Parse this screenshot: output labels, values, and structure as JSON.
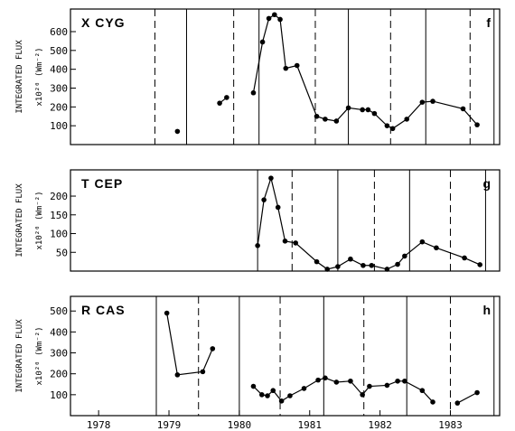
{
  "chart_data": [
    {
      "type": "line",
      "star": "X CYG",
      "panel_label": "f",
      "ylabel_line1": "INTEGRATED FLUX",
      "ylabel_line2": "x10²⁰ (Wm⁻²)",
      "yticks": [
        100,
        200,
        300,
        400,
        500,
        600
      ],
      "ylim": [
        0,
        720
      ],
      "xlim": [
        1977.6,
        1983.7
      ],
      "solid_lines": [
        1979.25,
        1980.28,
        1981.55,
        1982.65,
        1983.62
      ],
      "dashed_lines": [
        1978.8,
        1979.92,
        1981.08,
        1982.15,
        1983.28
      ],
      "segments": [
        {
          "x": [
            1979.12
          ],
          "y": [
            70
          ]
        },
        {
          "x": [
            1979.72,
            1979.82
          ],
          "y": [
            220,
            250
          ]
        },
        {
          "x": [
            1980.2,
            1980.33,
            1980.42,
            1980.5,
            1980.58,
            1980.66,
            1980.82,
            1981.1,
            1981.22,
            1981.38,
            1981.55,
            1981.75,
            1981.83,
            1981.92,
            1982.1,
            1982.18,
            1982.38,
            1982.6,
            1982.75,
            1983.18,
            1983.38
          ],
          "y": [
            275,
            545,
            670,
            690,
            665,
            405,
            420,
            150,
            135,
            125,
            195,
            185,
            185,
            165,
            100,
            85,
            135,
            225,
            230,
            190,
            105
          ]
        }
      ]
    },
    {
      "type": "line",
      "star": "T CEP",
      "panel_label": "g",
      "ylabel_line1": "INTEGRATED FLUX",
      "ylabel_line2": "x10²⁰ (Wm⁻²)",
      "yticks": [
        50,
        100,
        150,
        200
      ],
      "ylim": [
        0,
        270
      ],
      "xlim": [
        1977.6,
        1983.7
      ],
      "solid_lines": [
        1980.26,
        1981.4,
        1982.42,
        1983.5
      ],
      "dashed_lines": [
        1980.75,
        1981.92,
        1983.0
      ],
      "segments": [
        {
          "x": [
            1980.26,
            1980.35,
            1980.45,
            1980.55,
            1980.65,
            1980.8,
            1981.1,
            1981.25,
            1981.4,
            1981.58,
            1981.76,
            1981.88,
            1982.1,
            1982.25,
            1982.35,
            1982.6,
            1982.8,
            1983.2,
            1983.42
          ],
          "y": [
            68,
            190,
            248,
            170,
            80,
            75,
            25,
            5,
            12,
            32,
            15,
            15,
            5,
            18,
            40,
            78,
            62,
            35,
            17
          ]
        }
      ]
    },
    {
      "type": "line",
      "star": "R CAS",
      "panel_label": "h",
      "ylabel_line1": "INTEGRATED FLUX",
      "ylabel_line2": "x10²⁰ (Wm⁻²)",
      "yticks": [
        100,
        200,
        300,
        400,
        500
      ],
      "ylim": [
        0,
        570
      ],
      "xlim": [
        1977.6,
        1983.7
      ],
      "solid_lines": [
        1978.82,
        1980.0,
        1981.2,
        1982.38,
        1983.62
      ],
      "dashed_lines": [
        1979.42,
        1980.58,
        1981.77,
        1983.0
      ],
      "segments": [
        {
          "x": [
            1978.97,
            1979.12,
            1979.48,
            1979.62
          ],
          "y": [
            490,
            195,
            210,
            320
          ]
        },
        {
          "x": [
            1980.2,
            1980.32,
            1980.4,
            1980.48,
            1980.6,
            1980.72,
            1980.92,
            1981.12,
            1981.22,
            1981.38,
            1981.58,
            1981.75,
            1981.85,
            1982.1,
            1982.25,
            1982.35,
            1982.6,
            1982.75
          ],
          "y": [
            140,
            100,
            95,
            120,
            70,
            95,
            130,
            170,
            180,
            160,
            165,
            100,
            140,
            145,
            165,
            165,
            120,
            65
          ]
        },
        {
          "x": [
            1983.1,
            1983.38
          ],
          "y": [
            60,
            110
          ]
        }
      ]
    }
  ],
  "x_axis": {
    "tick_labels": [
      "1978",
      "1979",
      "1980",
      "1981",
      "1982",
      "1983"
    ],
    "tick_values": [
      1978.0,
      1979.0,
      1980.0,
      1981.0,
      1982.0,
      1983.0
    ]
  }
}
